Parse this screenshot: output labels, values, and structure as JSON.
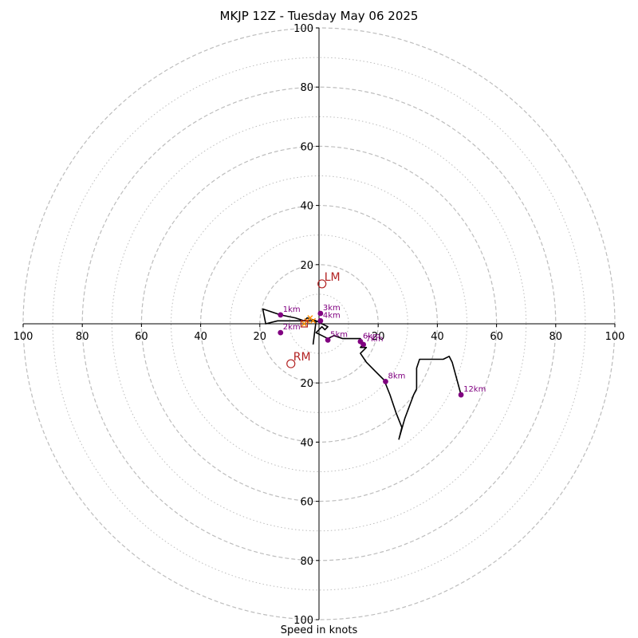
{
  "chart_data": {
    "type": "scatter",
    "subtype": "hodograph",
    "title": "MKJP 12Z - Tuesday May 06 2025",
    "xlabel": "Speed in knots",
    "ylabel": "",
    "axis_range": [
      -100,
      100
    ],
    "ring_major_step": 20,
    "ring_minor_step": 10,
    "x_ticks": [
      "100",
      "80",
      "60",
      "40",
      "20",
      "",
      "20",
      "40",
      "60",
      "80",
      "100"
    ],
    "y_ticks": [
      "100",
      "80",
      "60",
      "40",
      "20",
      "",
      "20",
      "40",
      "60",
      "80",
      "100"
    ],
    "grid": true,
    "hodograph_trace": [
      [
        -2,
        -7
      ],
      [
        -1,
        1
      ],
      [
        -14,
        1
      ],
      [
        -18,
        0
      ],
      [
        -19,
        5
      ],
      [
        -13,
        3
      ],
      [
        -8,
        2
      ],
      [
        -5,
        1
      ],
      [
        -4,
        2
      ],
      [
        -1,
        1
      ],
      [
        1,
        0
      ],
      [
        3,
        -1
      ],
      [
        2,
        -2
      ],
      [
        1,
        -1
      ],
      [
        0,
        -2
      ],
      [
        -1,
        -3
      ],
      [
        1,
        -4
      ],
      [
        3,
        -5
      ],
      [
        5,
        -4
      ],
      [
        8,
        -5
      ],
      [
        14,
        -5
      ],
      [
        15,
        -7
      ],
      [
        14,
        -8
      ],
      [
        16,
        -8
      ],
      [
        15,
        -9
      ],
      [
        14,
        -10
      ],
      [
        16,
        -13
      ],
      [
        19,
        -16
      ],
      [
        22,
        -19
      ],
      [
        24,
        -24
      ],
      [
        26,
        -30
      ],
      [
        28,
        -35
      ],
      [
        27,
        -39
      ],
      [
        29,
        -32
      ],
      [
        32,
        -24
      ],
      [
        33,
        -22
      ],
      [
        33,
        -15
      ],
      [
        34,
        -12
      ],
      [
        38,
        -12
      ],
      [
        42,
        -12
      ],
      [
        44,
        -11
      ],
      [
        45,
        -13
      ],
      [
        48,
        -24
      ]
    ],
    "height_markers": [
      {
        "label": "1km",
        "u": -13,
        "v": 3
      },
      {
        "label": "2km",
        "u": -13,
        "v": -3
      },
      {
        "label": "3km",
        "u": 0.5,
        "v": 3.5
      },
      {
        "label": "4km",
        "u": 0.5,
        "v": 1
      },
      {
        "label": "5km",
        "u": 3,
        "v": -5.5
      },
      {
        "label": "6km",
        "u": 14,
        "v": -6
      },
      {
        "label": "7km",
        "u": 15,
        "v": -7
      },
      {
        "label": "8km",
        "u": 22.5,
        "v": -19.5
      },
      {
        "label": "12km",
        "u": 48,
        "v": -24
      }
    ],
    "annotations": [
      {
        "label": "LM",
        "u": 1,
        "v": 13.5
      },
      {
        "label": "RM",
        "u": -9.5,
        "v": -13.5
      }
    ],
    "mean_wind_markers": [
      [
        -5,
        0
      ],
      [
        -4,
        1
      ],
      [
        -3,
        2
      ],
      [
        -2,
        1
      ]
    ],
    "colors": {
      "trace": "#000000",
      "height_markers": "#800080",
      "storm_motion": "#b22222",
      "mean_wind": "#ff8c00",
      "grid": "#bdbdbd",
      "axes": "#000000"
    }
  }
}
